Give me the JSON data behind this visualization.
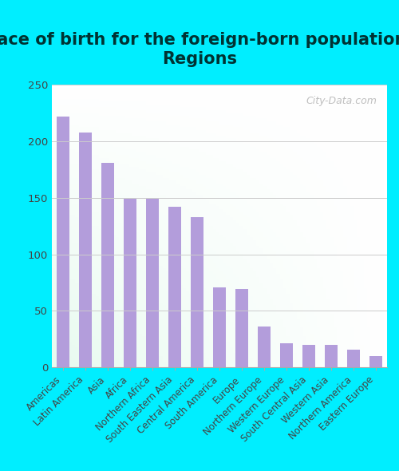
{
  "title": "Place of birth for the foreign-born population -\nRegions",
  "categories": [
    "Americas",
    "Latin America",
    "Asia",
    "Africa",
    "Northern Africa",
    "South Eastern Asia",
    "Central America",
    "South America",
    "Europe",
    "Northern Europe",
    "Western Europe",
    "South Central Asia",
    "Western Asia",
    "Northern America",
    "Eastern Europe"
  ],
  "values": [
    222,
    208,
    181,
    149,
    149,
    142,
    133,
    71,
    69,
    36,
    21,
    20,
    20,
    16,
    10
  ],
  "bar_color": "#b39ddb",
  "outer_background": "#00eeff",
  "ylabel_ticks": [
    0,
    50,
    100,
    150,
    200,
    250
  ],
  "ylim": [
    0,
    250
  ],
  "title_fontsize": 15,
  "tick_fontsize": 8.5,
  "watermark": "City-Data.com",
  "grid_color": "#cccccc",
  "title_color": "#003333"
}
